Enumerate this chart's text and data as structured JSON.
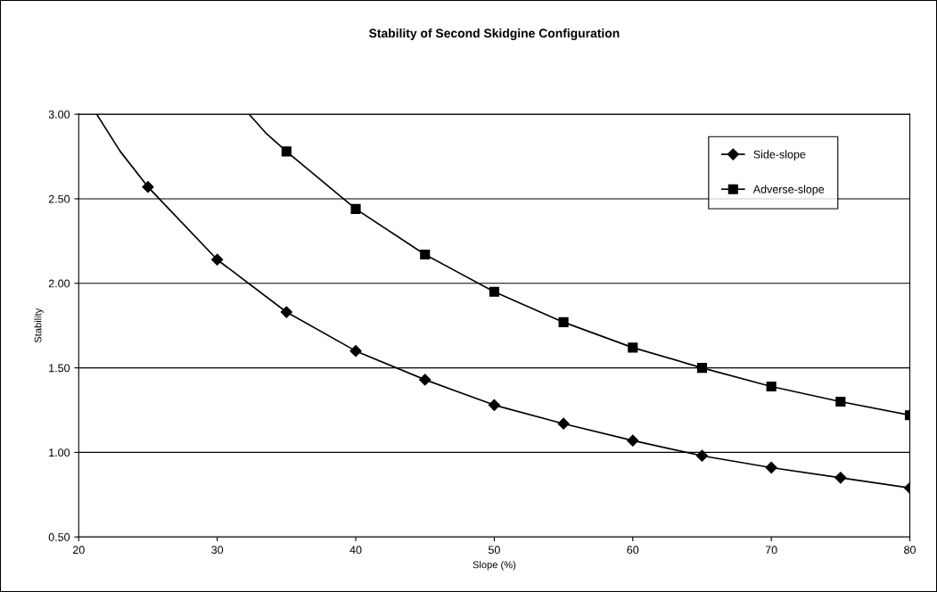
{
  "chart_data": {
    "type": "line",
    "title": "Stability of Second Skidgine Configuration",
    "xlabel": "Slope (%)",
    "ylabel": "Stability",
    "series": [
      {
        "name": "Side-slope",
        "color": "#000000",
        "marker": "diamond",
        "x": [
          25,
          30,
          35,
          40,
          45,
          50,
          55,
          60,
          65,
          70,
          75,
          80
        ],
        "values": [
          2.57,
          2.14,
          1.83,
          1.6,
          1.43,
          1.28,
          1.17,
          1.07,
          0.98,
          0.91,
          0.85,
          0.79
        ]
      },
      {
        "name": "Adverse-slope",
        "color": "#000000",
        "marker": "square",
        "x": [
          35,
          40,
          45,
          50,
          55,
          60,
          65,
          70,
          75,
          80
        ],
        "values": [
          2.78,
          2.44,
          2.17,
          1.95,
          1.77,
          1.62,
          1.5,
          1.39,
          1.3,
          1.22
        ]
      },
      {
        "color": "#000000",
        "marker": "none",
        "x": [
          21.3,
          23,
          25
        ],
        "values": [
          3.0,
          2.78,
          2.57
        ]
      },
      {
        "color": "#000000",
        "marker": "none",
        "x": [
          32.3,
          33.5,
          35
        ],
        "values": [
          3.0,
          2.89,
          2.78
        ]
      }
    ],
    "xlim": [
      20,
      80
    ],
    "xticks": [
      20,
      30,
      40,
      50,
      60,
      70,
      80
    ],
    "ylim": [
      0.5,
      3.0
    ],
    "yticks": [
      {
        "value": 0.5,
        "label": "0.50"
      },
      {
        "value": 1.0,
        "label": "1.00"
      },
      {
        "value": 1.5,
        "label": "1.50"
      },
      {
        "value": 2.0,
        "label": "2.00"
      },
      {
        "value": 2.5,
        "label": "2.50"
      },
      {
        "value": 3.0,
        "label": "3.00"
      }
    ],
    "grid": "y",
    "legend": "top right",
    "line_style": "solid"
  }
}
